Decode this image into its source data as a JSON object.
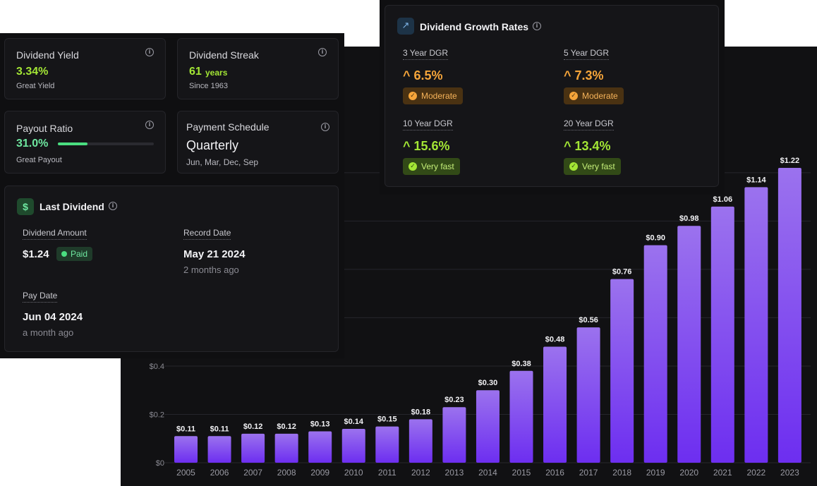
{
  "cards": {
    "yield": {
      "label": "Dividend Yield",
      "value": "3.34%",
      "note": "Great Yield"
    },
    "streak": {
      "label": "Dividend Streak",
      "value": "61",
      "unit": "years",
      "note": "Since 1963"
    },
    "payout": {
      "label": "Payout Ratio",
      "value": "31.0%",
      "progress": 0.31,
      "note": "Great Payout"
    },
    "schedule": {
      "label": "Payment Schedule",
      "value": "Quarterly",
      "months": "Jun, Mar, Dec, Sep"
    }
  },
  "last_dividend": {
    "title": "Last Dividend",
    "amount_label": "Dividend Amount",
    "amount": "$1.24",
    "status": "Paid",
    "record_label": "Record Date",
    "record_date": "May 21 2024",
    "record_ago": "2 months ago",
    "pay_label": "Pay Date",
    "pay_date": "Jun 04 2024",
    "pay_ago": "a month ago"
  },
  "growth": {
    "title": "Dividend Growth Rates",
    "items": [
      {
        "label": "3 Year DGR",
        "value": "6.5%",
        "rating": "Moderate"
      },
      {
        "label": "5 Year DGR",
        "value": "7.3%",
        "rating": "Moderate"
      },
      {
        "label": "10 Year DGR",
        "value": "15.6%",
        "rating": "Very fast"
      },
      {
        "label": "20 Year DGR",
        "value": "13.4%",
        "rating": "Very fast"
      }
    ]
  },
  "colors": {
    "accent_green": "#a3e635",
    "moderate_orange": "#f6a53a",
    "bar_top": "#9b72ee",
    "bar_bottom": "#6d2ef0",
    "paid_green": "#4ade80"
  },
  "chart_data": {
    "type": "bar",
    "categories": [
      "2005",
      "2006",
      "2007",
      "2008",
      "2009",
      "2010",
      "2011",
      "2012",
      "2013",
      "2014",
      "2015",
      "2016",
      "2017",
      "2018",
      "2019",
      "2020",
      "2021",
      "2022",
      "2023"
    ],
    "values": [
      0.11,
      0.11,
      0.12,
      0.12,
      0.13,
      0.14,
      0.15,
      0.18,
      0.23,
      0.3,
      0.38,
      0.48,
      0.56,
      0.76,
      0.9,
      0.98,
      1.06,
      1.14,
      1.22
    ],
    "data_labels": [
      "$0.11",
      "$0.11",
      "$0.12",
      "$0.12",
      "$0.13",
      "$0.14",
      "$0.15",
      "$0.18",
      "$0.23",
      "$0.30",
      "$0.38",
      "$0.48",
      "$0.56",
      "$0.76",
      "$0.90",
      "$0.98",
      "$1.06",
      "$1.14",
      "$1.22"
    ],
    "y_ticks": [
      0,
      0.2,
      0.4
    ],
    "y_tick_labels": [
      "$0",
      "$0.2",
      "$0.4"
    ],
    "ylim": [
      0,
      1.22
    ],
    "grid": true,
    "title": "",
    "xlabel": "",
    "ylabel": ""
  }
}
